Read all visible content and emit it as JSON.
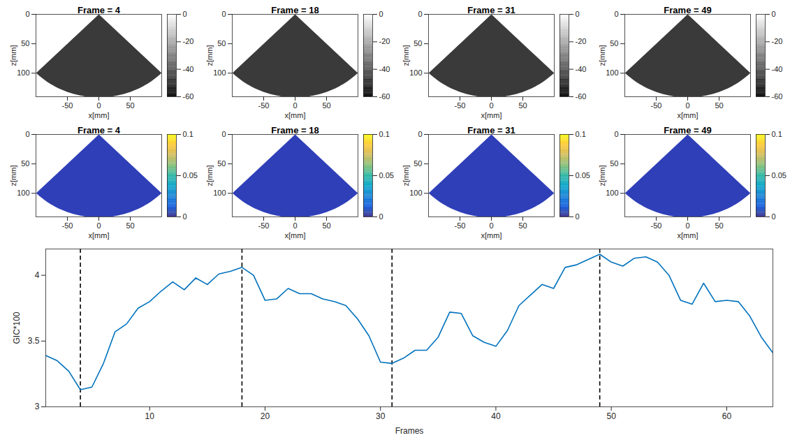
{
  "chart_data": [
    {
      "type": "image",
      "title": "Frame = 4",
      "xlabel": "x[mm]",
      "ylabel": "z[mm]",
      "xlim": [
        -100,
        100
      ],
      "xticks": [
        -50,
        0,
        50
      ],
      "ylim": [
        0,
        140
      ],
      "yticks": [
        0,
        50,
        100
      ],
      "color": "#3a3a3a",
      "sector_radius": 141,
      "sector_half_angle": 45,
      "colorbar": {
        "range": [
          -60,
          0
        ],
        "ticks": [
          0,
          -20,
          -40,
          -60
        ],
        "colors": [
          "#000000",
          "#ffffff"
        ]
      }
    },
    {
      "type": "image",
      "title": "Frame = 18",
      "xlabel": "x[mm]",
      "ylabel": "z[mm]",
      "xlim": [
        -100,
        100
      ],
      "xticks": [
        -50,
        0,
        50
      ],
      "ylim": [
        0,
        140
      ],
      "yticks": [
        0,
        50,
        100
      ],
      "color": "#3a3a3a",
      "sector_radius": 141,
      "sector_half_angle": 45,
      "colorbar": {
        "range": [
          -60,
          0
        ],
        "ticks": [
          0,
          -20,
          -40,
          -60
        ],
        "colors": [
          "#000000",
          "#ffffff"
        ]
      }
    },
    {
      "type": "image",
      "title": "Frame = 31",
      "xlabel": "x[mm]",
      "ylabel": "z[mm]",
      "xlim": [
        -100,
        100
      ],
      "xticks": [
        -50,
        0,
        50
      ],
      "ylim": [
        0,
        140
      ],
      "yticks": [
        0,
        50,
        100
      ],
      "color": "#3a3a3a",
      "sector_radius": 141,
      "sector_half_angle": 45,
      "colorbar": {
        "range": [
          -60,
          0
        ],
        "ticks": [
          0,
          -20,
          -40,
          -60
        ],
        "colors": [
          "#000000",
          "#ffffff"
        ]
      }
    },
    {
      "type": "image",
      "title": "Frame = 49",
      "xlabel": "x[mm]",
      "ylabel": "z[mm]",
      "xlim": [
        -100,
        100
      ],
      "xticks": [
        -50,
        0,
        50
      ],
      "ylim": [
        0,
        140
      ],
      "yticks": [
        0,
        50,
        100
      ],
      "color": "#3a3a3a",
      "sector_radius": 141,
      "sector_half_angle": 45,
      "colorbar": {
        "range": [
          -60,
          0
        ],
        "ticks": [
          0,
          -20,
          -40,
          -60
        ],
        "colors": [
          "#000000",
          "#ffffff"
        ]
      }
    },
    {
      "type": "image",
      "title": "Frame = 4",
      "xlabel": "x[mm]",
      "ylabel": "z[mm]",
      "xlim": [
        -100,
        100
      ],
      "xticks": [
        -50,
        0,
        50
      ],
      "ylim": [
        0,
        140
      ],
      "yticks": [
        0,
        50,
        100
      ],
      "color": "#2f3fb8",
      "sector_radius": 141,
      "sector_half_angle": 45,
      "colorbar": {
        "range": [
          0,
          0.1
        ],
        "ticks": [
          0,
          0.05,
          0.1
        ],
        "colors": [
          "#352a87",
          "#0f5cdd",
          "#1481d6",
          "#06a4ca",
          "#2eb7a4",
          "#87bf77",
          "#d1bb59",
          "#fec832",
          "#f9fb0e"
        ]
      }
    },
    {
      "type": "image",
      "title": "Frame = 18",
      "xlabel": "x[mm]",
      "ylabel": "z[mm]",
      "xlim": [
        -100,
        100
      ],
      "xticks": [
        -50,
        0,
        50
      ],
      "ylim": [
        0,
        140
      ],
      "yticks": [
        0,
        50,
        100
      ],
      "color": "#2f3fb8",
      "sector_radius": 141,
      "sector_half_angle": 45,
      "colorbar": {
        "range": [
          0,
          0.1
        ],
        "ticks": [
          0,
          0.05,
          0.1
        ],
        "colors": [
          "#352a87",
          "#0f5cdd",
          "#1481d6",
          "#06a4ca",
          "#2eb7a4",
          "#87bf77",
          "#d1bb59",
          "#fec832",
          "#f9fb0e"
        ]
      }
    },
    {
      "type": "image",
      "title": "Frame = 31",
      "xlabel": "x[mm]",
      "ylabel": "z[mm]",
      "xlim": [
        -100,
        100
      ],
      "xticks": [
        -50,
        0,
        50
      ],
      "ylim": [
        0,
        140
      ],
      "yticks": [
        0,
        50,
        100
      ],
      "color": "#2f3fb8",
      "sector_radius": 141,
      "sector_half_angle": 45,
      "colorbar": {
        "range": [
          0,
          0.1
        ],
        "ticks": [
          0,
          0.05,
          0.1
        ],
        "colors": [
          "#352a87",
          "#0f5cdd",
          "#1481d6",
          "#06a4ca",
          "#2eb7a4",
          "#87bf77",
          "#d1bb59",
          "#fec832",
          "#f9fb0e"
        ]
      }
    },
    {
      "type": "image",
      "title": "Frame = 49",
      "xlabel": "x[mm]",
      "ylabel": "z[mm]",
      "xlim": [
        -100,
        100
      ],
      "xticks": [
        -50,
        0,
        50
      ],
      "ylim": [
        0,
        140
      ],
      "yticks": [
        0,
        50,
        100
      ],
      "color": "#2f3fb8",
      "sector_radius": 141,
      "sector_half_angle": 45,
      "colorbar": {
        "range": [
          0,
          0.1
        ],
        "ticks": [
          0,
          0.05,
          0.1
        ],
        "colors": [
          "#352a87",
          "#0f5cdd",
          "#1481d6",
          "#06a4ca",
          "#2eb7a4",
          "#87bf77",
          "#d1bb59",
          "#fec832",
          "#f9fb0e"
        ]
      }
    },
    {
      "type": "line",
      "xlabel": "Frames",
      "ylabel": "GIC*100",
      "x": [
        1,
        2,
        3,
        4,
        5,
        6,
        7,
        8,
        9,
        10,
        11,
        12,
        13,
        14,
        15,
        16,
        17,
        18,
        19,
        20,
        21,
        22,
        23,
        24,
        25,
        26,
        27,
        28,
        29,
        30,
        31,
        32,
        33,
        34,
        35,
        36,
        37,
        38,
        39,
        40,
        41,
        42,
        43,
        44,
        45,
        46,
        47,
        48,
        49,
        50,
        51,
        52,
        53,
        54,
        55,
        56,
        57,
        58,
        59,
        60,
        61,
        62,
        63,
        64
      ],
      "series": [
        {
          "name": "GIC*100",
          "color": "#0072bd",
          "values": [
            3.39,
            3.35,
            3.27,
            3.13,
            3.15,
            3.33,
            3.57,
            3.63,
            3.75,
            3.8,
            3.88,
            3.95,
            3.89,
            3.98,
            3.93,
            4.01,
            4.03,
            4.06,
            4.0,
            3.81,
            3.82,
            3.9,
            3.86,
            3.86,
            3.82,
            3.8,
            3.77,
            3.67,
            3.54,
            3.34,
            3.33,
            3.37,
            3.43,
            3.43,
            3.53,
            3.72,
            3.71,
            3.54,
            3.49,
            3.46,
            3.58,
            3.77,
            3.85,
            3.93,
            3.9,
            4.06,
            4.08,
            4.12,
            4.16,
            4.1,
            4.07,
            4.13,
            4.14,
            4.1,
            4.0,
            3.81,
            3.78,
            3.94,
            3.8,
            3.81,
            3.8,
            3.69,
            3.53,
            3.41
          ]
        }
      ],
      "vlines": [
        4,
        18,
        31,
        49
      ],
      "xlim": [
        1,
        64
      ],
      "xticks": [
        10,
        20,
        30,
        40,
        50,
        60
      ],
      "ylim": [
        3,
        4.2
      ],
      "yticks": [
        3,
        3.5,
        4
      ],
      "grid": false
    }
  ]
}
